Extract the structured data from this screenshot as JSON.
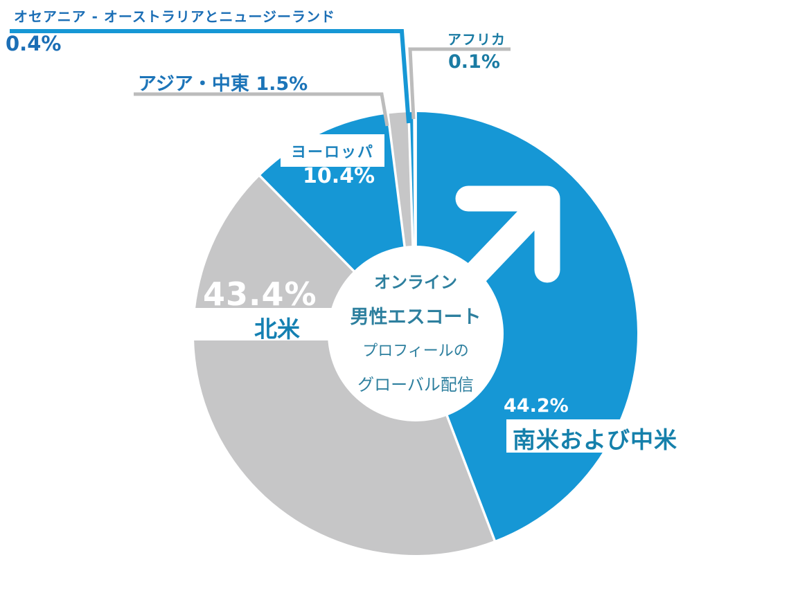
{
  "chart_data": {
    "type": "pie",
    "subtype": "donut",
    "title": "オンライン男性エスコートプロフィールのグローバル配信",
    "center_label_lines": [
      "オンライン",
      "男性エスコート",
      "プロフィールの",
      "グローバル配信"
    ],
    "unit": "%",
    "direction": "clockwise",
    "start_angle_deg": 0,
    "legend_position": "none",
    "grid": false,
    "slices": [
      {
        "label": "南米および中米",
        "value": 44.2,
        "pct_label": "44.2%",
        "color": "#1697d5"
      },
      {
        "label": "北米",
        "value": 43.4,
        "pct_label": "43.4%",
        "color": "#c6c6c7"
      },
      {
        "label": "ヨーロッパ",
        "value": 10.4,
        "pct_label": "10.4%",
        "color": "#1697d5"
      },
      {
        "label": "アジア・中東",
        "value": 1.5,
        "pct_label": "1.5%",
        "color": "#c6c6c7"
      },
      {
        "label": "オセアニア - オーストラリアとニュージーランド",
        "value": 0.4,
        "pct_label": "0.4%",
        "color": "#1697d5"
      },
      {
        "label": "アフリカ",
        "value": 0.1,
        "pct_label": "0.1%",
        "color": "#c6c6c7"
      }
    ]
  },
  "labels": {
    "oceania_name": "オセアニア - オーストラリアとニュージーランド",
    "oceania_pct": "0.4%",
    "africa_name": "アフリカ",
    "africa_pct": "0.1%",
    "asia_name_with_pct": "アジア・中東 1.5%",
    "europe_name": "ヨーロッパ",
    "europe_pct": "10.4%",
    "north_america_pct": "43.4%",
    "north_america_name": "北米",
    "south_america_pct": "44.2%",
    "south_america_name": "南米および中米"
  },
  "center": {
    "line1": "オンライン",
    "line2": "男性エスコート",
    "line3": "プロフィールの",
    "line4": "グローバル配信"
  },
  "icons": {
    "male_symbol": "male-arrow-icon"
  },
  "colors": {
    "slice_blue": "#1697d5",
    "slice_gray": "#c6c6c7",
    "leader_gray": "#bcbcbc",
    "label_royal_blue": "#1b6eb5",
    "label_teal": "#1a7ba3",
    "label_blue_mid": "#1c74b8",
    "center_text": "#2d7f9e",
    "background": "#ffffff"
  }
}
